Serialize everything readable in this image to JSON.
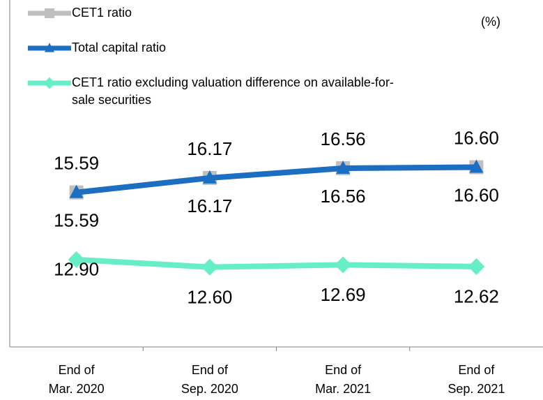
{
  "chart_data": {
    "type": "line",
    "unit_label": "(%)",
    "categories": [
      "End of\nMar. 2020",
      "End of\nSep. 2020",
      "End of\nMar. 2021",
      "End of\nSep. 2021"
    ],
    "series": [
      {
        "name": "CET1 ratio",
        "color": "#bfbfbf",
        "marker": "square",
        "values": [
          15.59,
          16.17,
          16.56,
          16.6
        ],
        "value_labels": [
          "15.59",
          "16.17",
          "16.56",
          "16.60"
        ]
      },
      {
        "name": "Total capital ratio",
        "color": "#1b6ec2",
        "marker": "triangle",
        "values": [
          15.59,
          16.17,
          16.56,
          16.6
        ],
        "value_labels": [
          "15.59",
          "16.17",
          "16.56",
          "16.60"
        ]
      },
      {
        "name": "CET1 ratio excluding valuation difference on available-for-sale securities",
        "color": "#66eec6",
        "marker": "diamond",
        "values": [
          12.9,
          12.6,
          12.69,
          12.62
        ],
        "value_labels": [
          "12.90",
          "12.60",
          "12.69",
          "12.62"
        ]
      }
    ],
    "ylim": [
      9.4,
      23.3
    ],
    "legend": "top-left"
  }
}
